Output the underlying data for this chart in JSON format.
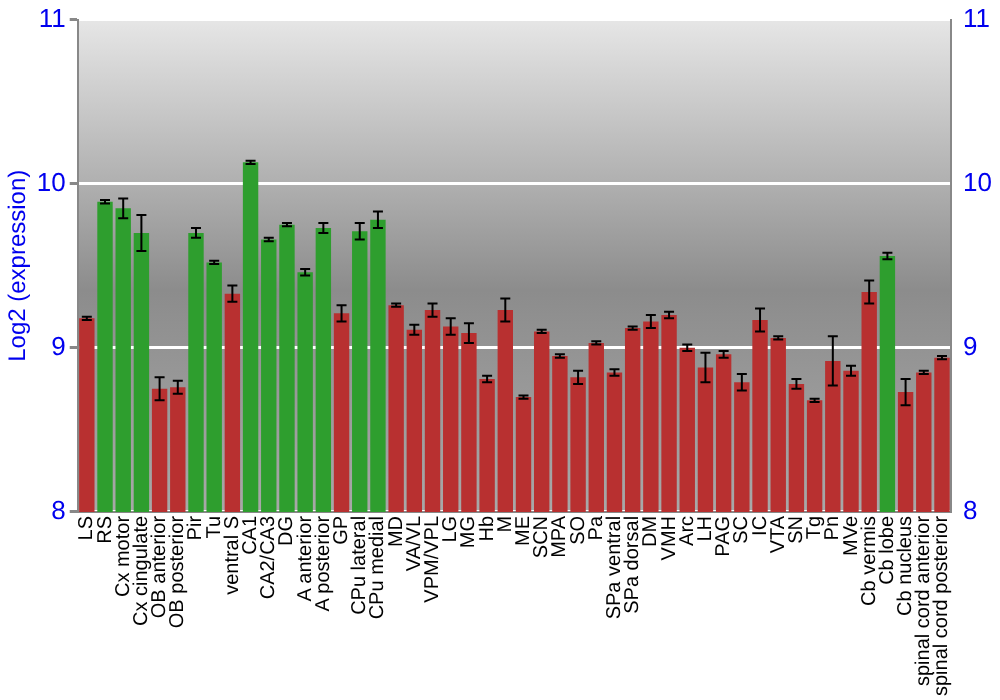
{
  "chart_data": {
    "type": "bar",
    "ylabel": "Log2 (expression)",
    "categories": [
      "LS",
      "RS",
      "Cx motor",
      "Cx cingulate",
      "OB anterior",
      "OB posterior",
      "Pir",
      "Tu",
      "ventral S",
      "CA1",
      "CA2/CA3",
      "DG",
      "A anterior",
      "A posterior",
      "GP",
      "CPu lateral",
      "CPu medial",
      "MD",
      "VA/VL",
      "VPM/VPL",
      "LG",
      "MG",
      "Hb",
      "M",
      "ME",
      "SCN",
      "MPA",
      "SO",
      "Pa",
      "SPa ventral",
      "SPa dorsal",
      "DM",
      "VMH",
      "Arc",
      "LH",
      "PAG",
      "SC",
      "IC",
      "VTA",
      "SN",
      "Tg",
      "Pn",
      "MVe",
      "Cb vermis",
      "Cb lobe",
      "Cb nucleus",
      "spinal cord anterior",
      "spinal cord posterior"
    ],
    "values": [
      9.18,
      9.89,
      9.85,
      9.7,
      8.75,
      8.76,
      9.7,
      9.52,
      9.33,
      10.13,
      9.66,
      9.75,
      9.46,
      9.73,
      9.21,
      9.71,
      9.78,
      9.26,
      9.11,
      9.23,
      9.13,
      9.09,
      8.81,
      9.23,
      8.7,
      9.1,
      8.95,
      8.82,
      9.03,
      8.85,
      9.12,
      9.16,
      9.2,
      9,
      8.88,
      8.96,
      8.79,
      9.17,
      9.06,
      8.78,
      8.68,
      8.92,
      8.86,
      9.34,
      9.56,
      8.73,
      8.85,
      8.94
    ],
    "errors": [
      0.01,
      0.01,
      0.06,
      0.11,
      0.07,
      0.04,
      0.03,
      0.01,
      0.05,
      0.01,
      0.01,
      0.01,
      0.02,
      0.03,
      0.05,
      0.05,
      0.05,
      0.01,
      0.03,
      0.04,
      0.05,
      0.06,
      0.02,
      0.07,
      0.01,
      0.01,
      0.01,
      0.04,
      0.01,
      0.02,
      0.01,
      0.04,
      0.02,
      0.02,
      0.09,
      0.02,
      0.05,
      0.07,
      0.01,
      0.03,
      0.01,
      0.15,
      0.03,
      0.07,
      0.02,
      0.08,
      0.01,
      0.01
    ],
    "colors": [
      "#b83030",
      "#2e9e2e",
      "#2e9e2e",
      "#2e9e2e",
      "#b83030",
      "#b83030",
      "#2e9e2e",
      "#2e9e2e",
      "#b83030",
      "#2e9e2e",
      "#2e9e2e",
      "#2e9e2e",
      "#2e9e2e",
      "#2e9e2e",
      "#b83030",
      "#2e9e2e",
      "#2e9e2e",
      "#b83030",
      "#b83030",
      "#b83030",
      "#b83030",
      "#b83030",
      "#b83030",
      "#b83030",
      "#b83030",
      "#b83030",
      "#b83030",
      "#b83030",
      "#b83030",
      "#b83030",
      "#b83030",
      "#b83030",
      "#b83030",
      "#b83030",
      "#b83030",
      "#b83030",
      "#b83030",
      "#b83030",
      "#b83030",
      "#b83030",
      "#b83030",
      "#b83030",
      "#b83030",
      "#b83030",
      "#2e9e2e",
      "#b83030",
      "#b83030",
      "#b83030"
    ],
    "ylim": [
      8,
      11
    ],
    "yticks": [
      8,
      9,
      10,
      11
    ],
    "y2lim": [
      8,
      11
    ],
    "y2ticks": [
      8,
      9,
      10,
      11
    ],
    "grid": "y",
    "legend": false
  }
}
